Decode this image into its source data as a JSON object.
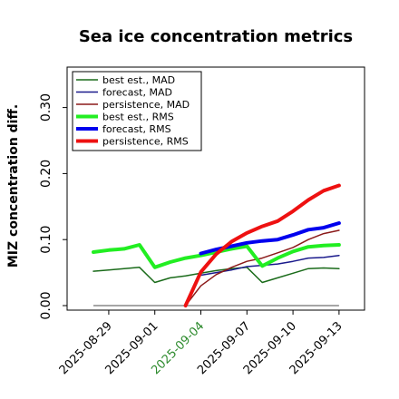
{
  "chart_data": {
    "type": "line",
    "title": "Sea ice concentration metrics",
    "ylabel": "MIZ concentration diff.",
    "xlabel": "",
    "ylim": [
      0.0,
      0.3
    ],
    "yticks": [
      "0.00",
      "0.10",
      "0.20",
      "0.30"
    ],
    "x": [
      "2025-08-28",
      "2025-08-29",
      "2025-08-30",
      "2025-08-31",
      "2025-09-01",
      "2025-09-02",
      "2025-09-03",
      "2025-09-04",
      "2025-09-05",
      "2025-09-06",
      "2025-09-07",
      "2025-09-08",
      "2025-09-09",
      "2025-09-10",
      "2025-09-11",
      "2025-09-12",
      "2025-09-13"
    ],
    "xtick_labels": [
      "2025-08-29",
      "2025-09-01",
      "2025-09-04",
      "2025-09-07",
      "2025-09-10",
      "2025-09-13"
    ],
    "highlighted_tick": "2025-09-04",
    "highlight_color": "#2e8b2e",
    "legend": "top-left",
    "grid": false,
    "series": [
      {
        "name": "best est., MAD",
        "color": "#1a6b1a",
        "width": 1.5,
        "values": [
          0.052,
          0.054,
          0.056,
          0.058,
          0.035,
          0.042,
          0.045,
          0.049,
          0.053,
          0.056,
          0.058,
          0.035,
          0.042,
          0.049,
          0.056,
          0.057,
          0.056
        ]
      },
      {
        "name": "forecast,  MAD",
        "color": "#1a1a8c",
        "width": 1.5,
        "values": [
          null,
          null,
          null,
          null,
          null,
          null,
          null,
          0.046,
          0.05,
          0.054,
          0.059,
          0.061,
          0.063,
          0.067,
          0.072,
          0.073,
          0.076
        ]
      },
      {
        "name": "persistence, MAD",
        "color": "#8b1a1a",
        "width": 1.5,
        "values": [
          null,
          null,
          null,
          null,
          null,
          null,
          0.0,
          0.03,
          0.047,
          0.058,
          0.067,
          0.072,
          0.08,
          0.088,
          0.1,
          0.109,
          0.114
        ]
      },
      {
        "name": "best est., RMS",
        "color": "#22ee22",
        "width": 4,
        "values": [
          0.081,
          0.084,
          0.086,
          0.092,
          0.058,
          0.066,
          0.072,
          0.076,
          0.081,
          0.086,
          0.09,
          0.06,
          0.072,
          0.082,
          0.089,
          0.091,
          0.092
        ]
      },
      {
        "name": "forecast,  RMS",
        "color": "#0000ee",
        "width": 4,
        "values": [
          null,
          null,
          null,
          null,
          null,
          null,
          null,
          0.079,
          0.085,
          0.09,
          0.095,
          0.098,
          0.1,
          0.107,
          0.115,
          0.118,
          0.125
        ]
      },
      {
        "name": "persistence, RMS",
        "color": "#ee1111",
        "width": 4,
        "values": [
          null,
          null,
          null,
          null,
          null,
          null,
          0.0,
          0.051,
          0.078,
          0.097,
          0.11,
          0.12,
          0.128,
          0.143,
          0.16,
          0.174,
          0.182
        ]
      }
    ],
    "baseline": {
      "value": 0.0,
      "color": "#888888"
    }
  }
}
